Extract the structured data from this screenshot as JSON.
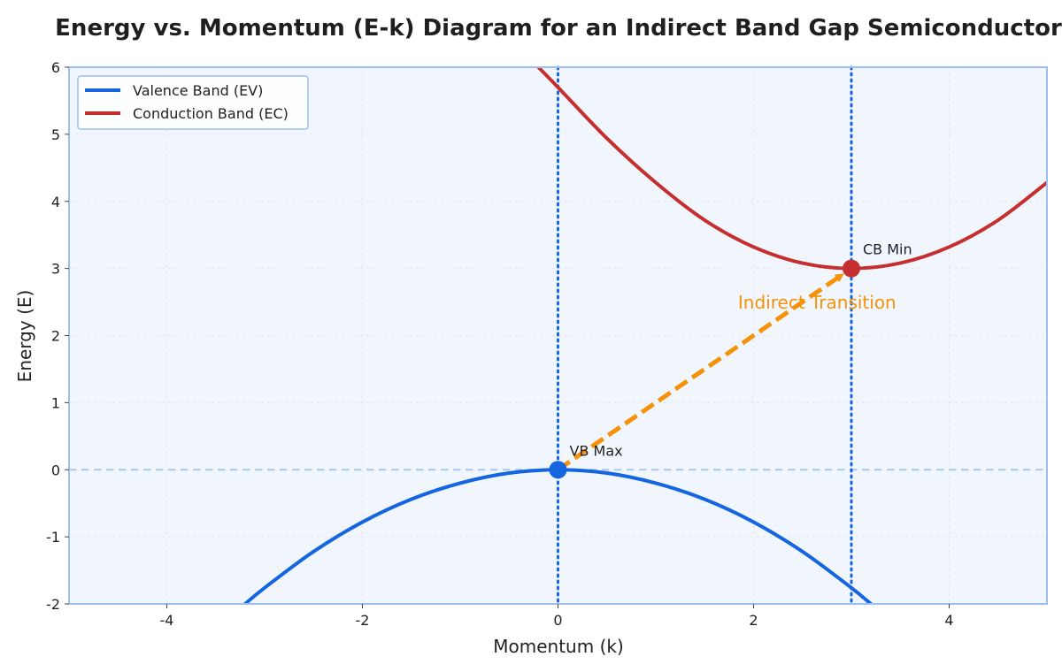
{
  "chart_data": {
    "type": "line",
    "title": "Energy vs. Momentum (E-k) Diagram for an Indirect Band Gap Semiconductor",
    "xlabel": "Momentum (k)",
    "ylabel": "Energy (E)",
    "xlim": [
      -5,
      5
    ],
    "ylim": [
      -2,
      6
    ],
    "xticks": [
      -4,
      -2,
      0,
      2,
      4
    ],
    "yticks": [
      -2,
      -1,
      0,
      1,
      2,
      3,
      4,
      5,
      6
    ],
    "grid": true,
    "legend_position": "top-left",
    "series": [
      {
        "name": "Valence Band (EV)",
        "color": "#1565e0",
        "x": [
          -3.2,
          -3.0,
          -2.5,
          -2.0,
          -1.5,
          -1.0,
          -0.5,
          0.0,
          0.5,
          1.0,
          1.5,
          2.0,
          2.5,
          3.0,
          3.2
        ],
        "y": [
          -2.0,
          -1.76,
          -1.22,
          -0.78,
          -0.44,
          -0.2,
          -0.05,
          0.0,
          -0.05,
          -0.2,
          -0.44,
          -0.78,
          -1.22,
          -1.76,
          -2.0
        ]
      },
      {
        "name": "Conduction Band (EC)",
        "color": "#c62f2f",
        "x": [
          -0.2,
          0.0,
          0.5,
          1.0,
          1.5,
          2.0,
          2.5,
          3.0,
          3.5,
          4.0,
          4.5,
          5.0
        ],
        "y": [
          6.0,
          5.7,
          4.94,
          4.28,
          3.72,
          3.32,
          3.08,
          3.0,
          3.08,
          3.32,
          3.72,
          4.28
        ]
      }
    ],
    "points": [
      {
        "label": "VB Max",
        "x": 0,
        "y": 0,
        "color": "#1565e0"
      },
      {
        "label": "CB Min",
        "x": 3,
        "y": 3,
        "color": "#c62f2f"
      }
    ],
    "arrow": {
      "label": "Indirect Transition",
      "from": [
        0,
        0
      ],
      "to": [
        3,
        3
      ],
      "color": "#f5920a"
    },
    "vlines": [
      0,
      3
    ],
    "hline": 0,
    "colors": {
      "plot_bg": "#f1f6fd",
      "frame": "#9dbfef",
      "grid": "#dde6f2",
      "vline": "#1565e0",
      "hline": "#a9c8ee"
    }
  }
}
